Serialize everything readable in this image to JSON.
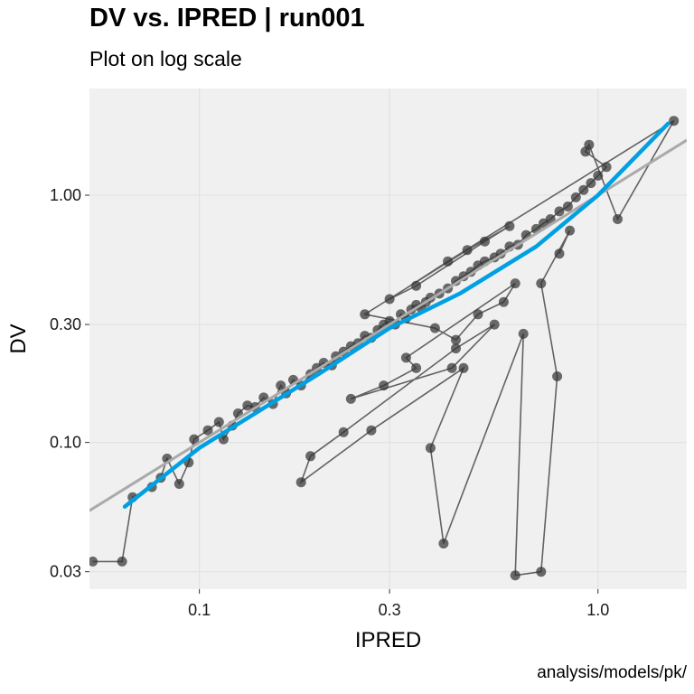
{
  "chart_data": {
    "type": "scatter",
    "title": "DV vs. IPRED | run001",
    "subtitle": "Plot on log scale",
    "caption": "analysis/models/pk/",
    "xlabel": "IPRED",
    "ylabel": "DV",
    "x_scale": "log",
    "y_scale": "log",
    "xlim": [
      0.053,
      1.67
    ],
    "ylim": [
      0.0255,
      2.7
    ],
    "x_ticks": [
      0.1,
      0.3,
      1.0
    ],
    "x_tick_labels": [
      "0.1",
      "0.3",
      "1.0"
    ],
    "y_ticks": [
      0.03,
      0.1,
      0.3,
      1.0
    ],
    "y_tick_labels": [
      "0.03",
      "0.10",
      "0.30",
      "1.00"
    ],
    "grid": true,
    "panel_background": "#f0f0f0",
    "gridline_color": "#e2e2e2",
    "point_color": "#333333",
    "connect_points": true,
    "colors": {
      "identity_line": "#aaaaaa",
      "smooth_line": "#00a0e3"
    },
    "identity_line": {
      "type": "y=x"
    },
    "smooth_line": {
      "x": [
        0.065,
        0.1,
        0.2,
        0.3,
        0.45,
        0.7,
        1.0,
        1.5
      ],
      "y": [
        0.055,
        0.095,
        0.19,
        0.29,
        0.4,
        0.62,
        1.0,
        1.95
      ]
    },
    "points": [
      {
        "x": 0.054,
        "y": 0.033
      },
      {
        "x": 0.064,
        "y": 0.033
      },
      {
        "x": 0.068,
        "y": 0.06
      },
      {
        "x": 0.076,
        "y": 0.066
      },
      {
        "x": 0.08,
        "y": 0.072
      },
      {
        "x": 0.083,
        "y": 0.086
      },
      {
        "x": 0.089,
        "y": 0.068
      },
      {
        "x": 0.094,
        "y": 0.083
      },
      {
        "x": 0.097,
        "y": 0.103
      },
      {
        "x": 0.105,
        "y": 0.112
      },
      {
        "x": 0.112,
        "y": 0.121
      },
      {
        "x": 0.115,
        "y": 0.103
      },
      {
        "x": 0.121,
        "y": 0.117
      },
      {
        "x": 0.125,
        "y": 0.131
      },
      {
        "x": 0.132,
        "y": 0.141
      },
      {
        "x": 0.138,
        "y": 0.139
      },
      {
        "x": 0.145,
        "y": 0.152
      },
      {
        "x": 0.153,
        "y": 0.143
      },
      {
        "x": 0.16,
        "y": 0.17
      },
      {
        "x": 0.165,
        "y": 0.158
      },
      {
        "x": 0.172,
        "y": 0.179
      },
      {
        "x": 0.18,
        "y": 0.17
      },
      {
        "x": 0.19,
        "y": 0.189
      },
      {
        "x": 0.197,
        "y": 0.2
      },
      {
        "x": 0.205,
        "y": 0.21
      },
      {
        "x": 0.215,
        "y": 0.205
      },
      {
        "x": 0.22,
        "y": 0.223
      },
      {
        "x": 0.23,
        "y": 0.233
      },
      {
        "x": 0.24,
        "y": 0.245
      },
      {
        "x": 0.25,
        "y": 0.252
      },
      {
        "x": 0.26,
        "y": 0.27
      },
      {
        "x": 0.27,
        "y": 0.265
      },
      {
        "x": 0.28,
        "y": 0.285
      },
      {
        "x": 0.29,
        "y": 0.3
      },
      {
        "x": 0.3,
        "y": 0.31
      },
      {
        "x": 0.31,
        "y": 0.3
      },
      {
        "x": 0.32,
        "y": 0.33
      },
      {
        "x": 0.33,
        "y": 0.318
      },
      {
        "x": 0.34,
        "y": 0.345
      },
      {
        "x": 0.35,
        "y": 0.36
      },
      {
        "x": 0.36,
        "y": 0.35
      },
      {
        "x": 0.37,
        "y": 0.37
      },
      {
        "x": 0.38,
        "y": 0.385
      },
      {
        "x": 0.4,
        "y": 0.4
      },
      {
        "x": 0.42,
        "y": 0.42
      },
      {
        "x": 0.44,
        "y": 0.45
      },
      {
        "x": 0.46,
        "y": 0.47
      },
      {
        "x": 0.48,
        "y": 0.49
      },
      {
        "x": 0.5,
        "y": 0.52
      },
      {
        "x": 0.52,
        "y": 0.54
      },
      {
        "x": 0.55,
        "y": 0.56
      },
      {
        "x": 0.57,
        "y": 0.58
      },
      {
        "x": 0.6,
        "y": 0.62
      },
      {
        "x": 0.63,
        "y": 0.63
      },
      {
        "x": 0.66,
        "y": 0.69
      },
      {
        "x": 0.7,
        "y": 0.73
      },
      {
        "x": 0.73,
        "y": 0.77
      },
      {
        "x": 0.76,
        "y": 0.8
      },
      {
        "x": 0.8,
        "y": 0.86
      },
      {
        "x": 0.84,
        "y": 0.9
      },
      {
        "x": 0.88,
        "y": 0.98
      },
      {
        "x": 0.92,
        "y": 1.05
      },
      {
        "x": 0.96,
        "y": 1.12
      },
      {
        "x": 1.0,
        "y": 1.2
      },
      {
        "x": 1.05,
        "y": 1.3
      },
      {
        "x": 0.93,
        "y": 1.5
      },
      {
        "x": 0.95,
        "y": 1.6
      },
      {
        "x": 1.12,
        "y": 0.8
      },
      {
        "x": 1.55,
        "y": 2.0
      },
      {
        "x": 0.42,
        "y": 0.54
      },
      {
        "x": 0.3,
        "y": 0.38
      },
      {
        "x": 0.35,
        "y": 0.43
      },
      {
        "x": 0.52,
        "y": 0.65
      },
      {
        "x": 0.6,
        "y": 0.75
      },
      {
        "x": 0.47,
        "y": 0.6
      },
      {
        "x": 0.26,
        "y": 0.33
      },
      {
        "x": 0.39,
        "y": 0.29
      },
      {
        "x": 0.44,
        "y": 0.26
      },
      {
        "x": 0.5,
        "y": 0.33
      },
      {
        "x": 0.58,
        "y": 0.37
      },
      {
        "x": 0.62,
        "y": 0.44
      },
      {
        "x": 0.33,
        "y": 0.22
      },
      {
        "x": 0.35,
        "y": 0.2
      },
      {
        "x": 0.29,
        "y": 0.17
      },
      {
        "x": 0.24,
        "y": 0.15
      },
      {
        "x": 0.43,
        "y": 0.2
      },
      {
        "x": 0.55,
        "y": 0.3
      },
      {
        "x": 0.44,
        "y": 0.24
      },
      {
        "x": 0.23,
        "y": 0.11
      },
      {
        "x": 0.19,
        "y": 0.088
      },
      {
        "x": 0.18,
        "y": 0.069
      },
      {
        "x": 0.27,
        "y": 0.112
      },
      {
        "x": 0.46,
        "y": 0.2
      },
      {
        "x": 0.38,
        "y": 0.095
      },
      {
        "x": 0.41,
        "y": 0.039
      },
      {
        "x": 0.65,
        "y": 0.275
      },
      {
        "x": 0.62,
        "y": 0.029
      },
      {
        "x": 0.72,
        "y": 0.03
      },
      {
        "x": 0.79,
        "y": 0.185
      },
      {
        "x": 0.72,
        "y": 0.44
      },
      {
        "x": 0.85,
        "y": 0.72
      },
      {
        "x": 0.8,
        "y": 0.58
      }
    ]
  }
}
